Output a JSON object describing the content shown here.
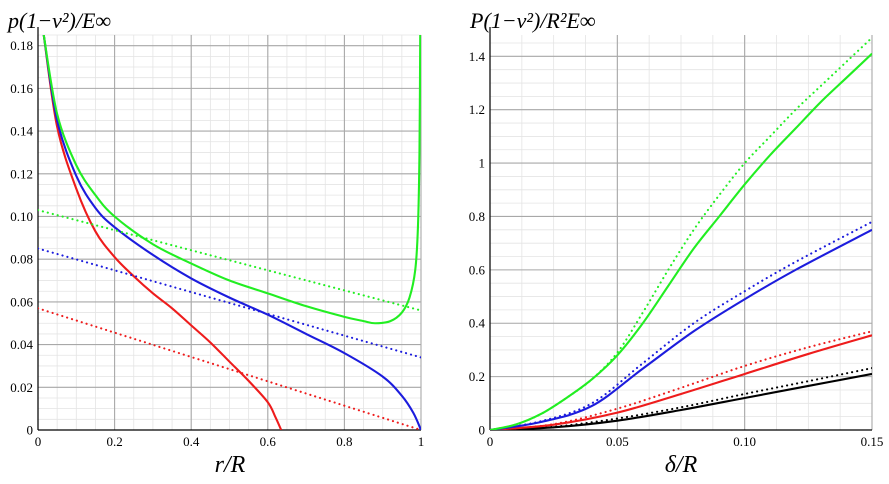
{
  "chart_data": [
    {
      "type": "line",
      "ylabel": "p(1−ν²)/E∞",
      "xlabel": "r/R",
      "xlim": [
        0,
        1
      ],
      "ylim": [
        0,
        0.185
      ],
      "grid": true,
      "x_ticks": [
        0,
        0.2,
        0.4,
        0.6,
        0.8,
        1
      ],
      "x_tick_labels": [
        "0",
        "0.2",
        "0.4",
        "0.6",
        "0.8",
        "1"
      ],
      "y_ticks": [
        0,
        0.02,
        0.04,
        0.06,
        0.08,
        0.1,
        0.12,
        0.14,
        0.16,
        0.18
      ],
      "y_tick_labels": [
        "0",
        "0.02",
        "0.04",
        "0.06",
        "0.08",
        "0.10",
        "0.12",
        "0.14",
        "0.16",
        "0.18"
      ],
      "series": [
        {
          "color": "#ee1c1c",
          "style": "solid",
          "x": [
            0.015,
            0.05,
            0.1,
            0.15,
            0.2,
            0.25,
            0.3,
            0.35,
            0.4,
            0.45,
            0.5,
            0.55,
            0.6,
            0.62,
            0.635
          ],
          "y": [
            0.185,
            0.142,
            0.113,
            0.093,
            0.081,
            0.072,
            0.064,
            0.057,
            0.049,
            0.041,
            0.032,
            0.023,
            0.013,
            0.006,
            0.0
          ]
        },
        {
          "color": "#ee1c1c",
          "style": "dotted",
          "x": [
            0,
            1
          ],
          "y": [
            0.057,
            0.0
          ]
        },
        {
          "color": "#1c1cdd",
          "style": "solid",
          "x": [
            0.015,
            0.05,
            0.1,
            0.15,
            0.2,
            0.3,
            0.4,
            0.5,
            0.6,
            0.7,
            0.8,
            0.9,
            0.95,
            0.98,
            1.0
          ],
          "y": [
            0.185,
            0.145,
            0.119,
            0.104,
            0.095,
            0.082,
            0.071,
            0.062,
            0.054,
            0.045,
            0.036,
            0.025,
            0.016,
            0.008,
            0.0
          ]
        },
        {
          "color": "#1c1cdd",
          "style": "dotted",
          "x": [
            0,
            1
          ],
          "y": [
            0.085,
            0.034
          ]
        },
        {
          "color": "#22ee22",
          "style": "solid",
          "x": [
            0.015,
            0.05,
            0.1,
            0.15,
            0.2,
            0.3,
            0.4,
            0.5,
            0.6,
            0.7,
            0.8,
            0.85,
            0.88,
            0.92,
            0.95,
            0.97,
            0.985,
            0.992,
            0.996,
            0.998
          ],
          "y": [
            0.185,
            0.148,
            0.124,
            0.11,
            0.1,
            0.087,
            0.078,
            0.07,
            0.064,
            0.058,
            0.053,
            0.051,
            0.05,
            0.051,
            0.055,
            0.062,
            0.075,
            0.095,
            0.13,
            0.185
          ]
        },
        {
          "color": "#22ee22",
          "style": "dotted",
          "x": [
            0,
            1
          ],
          "y": [
            0.103,
            0.056
          ]
        }
      ]
    },
    {
      "type": "line",
      "ylabel": "P(1−ν²)/R²E∞",
      "xlabel": "δ/R",
      "xlim": [
        0,
        0.15
      ],
      "ylim": [
        0,
        1.48
      ],
      "grid": true,
      "x_ticks": [
        0,
        0.05,
        0.1,
        0.15
      ],
      "x_tick_labels": [
        "0",
        "0.05",
        "0.10",
        "0.15"
      ],
      "y_ticks": [
        0,
        0.2,
        0.4,
        0.6,
        0.8,
        1.0,
        1.2,
        1.4
      ],
      "y_tick_labels": [
        "0",
        "0.2",
        "0.4",
        "0.6",
        "0.8",
        "1",
        "1.2",
        "1.4"
      ],
      "series": [
        {
          "color": "#000000",
          "style": "solid",
          "x": [
            0,
            0.025,
            0.05,
            0.075,
            0.1,
            0.125,
            0.15
          ],
          "y": [
            0,
            0.01,
            0.035,
            0.075,
            0.12,
            0.165,
            0.21
          ]
        },
        {
          "color": "#000000",
          "style": "dotted",
          "x": [
            0,
            0.025,
            0.05,
            0.075,
            0.1,
            0.125,
            0.15
          ],
          "y": [
            0,
            0.012,
            0.043,
            0.085,
            0.135,
            0.183,
            0.232
          ]
        },
        {
          "color": "#ee1c1c",
          "style": "solid",
          "x": [
            0,
            0.025,
            0.05,
            0.075,
            0.1,
            0.125,
            0.15
          ],
          "y": [
            0,
            0.02,
            0.065,
            0.135,
            0.21,
            0.285,
            0.355
          ]
        },
        {
          "color": "#ee1c1c",
          "style": "dotted",
          "x": [
            0,
            0.025,
            0.05,
            0.075,
            0.1,
            0.125,
            0.15
          ],
          "y": [
            0,
            0.022,
            0.08,
            0.158,
            0.24,
            0.31,
            0.37
          ]
        },
        {
          "color": "#1c1cdd",
          "style": "solid",
          "x": [
            0,
            0.02,
            0.04,
            0.06,
            0.08,
            0.1,
            0.12,
            0.15
          ],
          "y": [
            0,
            0.03,
            0.09,
            0.23,
            0.37,
            0.49,
            0.6,
            0.75
          ]
        },
        {
          "color": "#1c1cdd",
          "style": "dotted",
          "x": [
            0,
            0.02,
            0.04,
            0.06,
            0.08,
            0.1,
            0.12,
            0.15
          ],
          "y": [
            0,
            0.033,
            0.1,
            0.25,
            0.4,
            0.52,
            0.63,
            0.78
          ]
        },
        {
          "color": "#22ee22",
          "style": "solid",
          "x": [
            0,
            0.01,
            0.02,
            0.03,
            0.04,
            0.05,
            0.06,
            0.07,
            0.08,
            0.09,
            0.1,
            0.11,
            0.12,
            0.13,
            0.14,
            0.15
          ],
          "y": [
            0,
            0.02,
            0.06,
            0.12,
            0.19,
            0.28,
            0.4,
            0.54,
            0.68,
            0.8,
            0.92,
            1.03,
            1.13,
            1.23,
            1.32,
            1.41
          ]
        },
        {
          "color": "#22ee22",
          "style": "dotted",
          "x": [
            0,
            0.01,
            0.02,
            0.03,
            0.04,
            0.05,
            0.06,
            0.07,
            0.08,
            0.09,
            0.1,
            0.11,
            0.12,
            0.13,
            0.14,
            0.15
          ],
          "y": [
            0,
            0.02,
            0.06,
            0.12,
            0.19,
            0.29,
            0.44,
            0.6,
            0.75,
            0.88,
            1.0,
            1.1,
            1.2,
            1.29,
            1.38,
            1.47
          ]
        }
      ]
    }
  ]
}
